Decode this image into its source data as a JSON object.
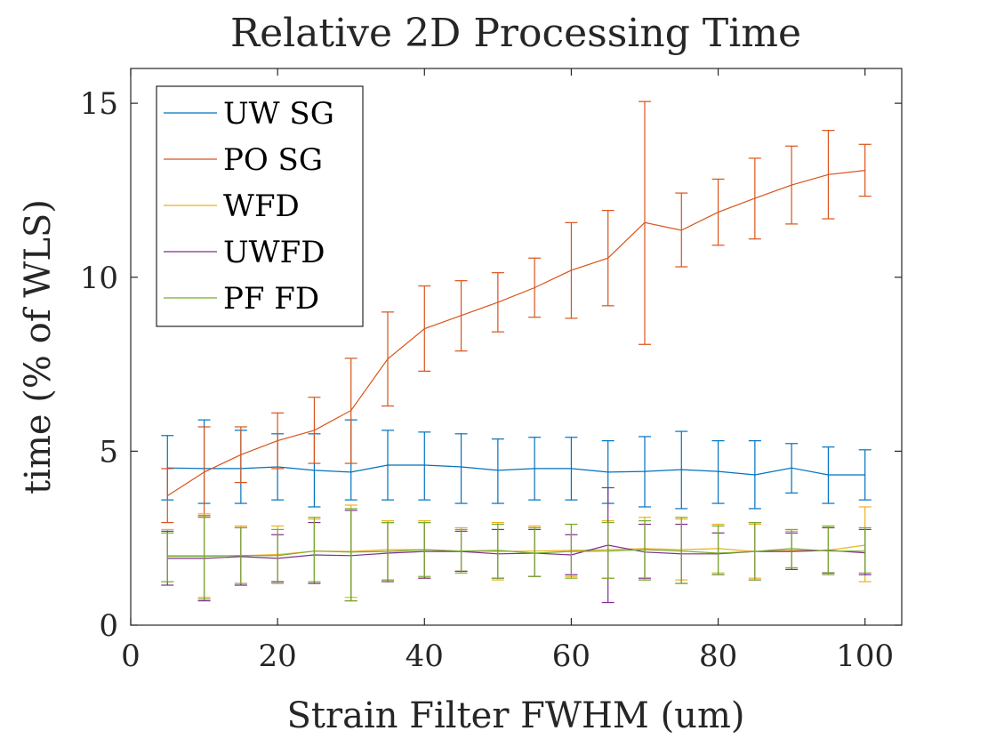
{
  "chart_data": {
    "type": "line",
    "title": "Relative 2D Processing Time",
    "xlabel": "Strain Filter FWHM (um)",
    "ylabel": "time (% of WLS)",
    "xlim": [
      0,
      105
    ],
    "ylim": [
      0,
      16
    ],
    "x_ticks": [
      0,
      20,
      40,
      60,
      80,
      100
    ],
    "y_ticks": [
      0,
      5,
      10,
      15
    ],
    "grid": false,
    "legend_position": "top-left",
    "x": [
      5,
      10,
      15,
      20,
      25,
      30,
      35,
      40,
      45,
      50,
      55,
      60,
      65,
      70,
      75,
      80,
      85,
      90,
      95,
      100
    ],
    "series": [
      {
        "name": "UW SG",
        "color": "#0072BD",
        "values": [
          4.52,
          4.5,
          4.5,
          4.55,
          4.45,
          4.4,
          4.6,
          4.6,
          4.55,
          4.45,
          4.5,
          4.5,
          4.4,
          4.42,
          4.47,
          4.42,
          4.32,
          4.52,
          4.32,
          4.32
        ],
        "err_low": [
          3.6,
          3.5,
          3.5,
          3.6,
          3.4,
          3.6,
          3.6,
          3.6,
          3.5,
          3.5,
          3.6,
          3.6,
          3.5,
          3.4,
          3.35,
          3.5,
          3.35,
          3.8,
          3.5,
          3.6
        ],
        "err_high": [
          5.45,
          5.9,
          5.6,
          5.5,
          5.5,
          5.9,
          5.6,
          5.55,
          5.5,
          5.35,
          5.4,
          5.4,
          5.3,
          5.42,
          5.57,
          5.3,
          5.3,
          5.22,
          5.12,
          5.04
        ]
      },
      {
        "name": "PO SG",
        "color": "#D95319",
        "values": [
          3.72,
          4.4,
          4.9,
          5.3,
          5.6,
          6.17,
          7.65,
          8.52,
          8.9,
          9.28,
          9.7,
          10.2,
          10.55,
          11.57,
          11.35,
          11.87,
          12.27,
          12.65,
          12.95,
          13.07
        ],
        "err_low": [
          2.95,
          3.1,
          4.1,
          4.5,
          4.65,
          4.65,
          6.3,
          7.3,
          7.88,
          8.43,
          8.85,
          8.82,
          9.18,
          8.07,
          10.3,
          10.92,
          11.1,
          11.53,
          11.68,
          12.33
        ],
        "err_high": [
          4.5,
          5.7,
          5.7,
          6.1,
          6.55,
          7.67,
          9.0,
          9.75,
          9.9,
          10.13,
          10.55,
          11.57,
          11.92,
          15.05,
          12.42,
          12.82,
          13.42,
          13.77,
          14.22,
          13.82
        ]
      },
      {
        "name": "WFD",
        "color": "#EDB120",
        "values": [
          2.0,
          2.0,
          2.0,
          2.03,
          2.13,
          2.12,
          2.17,
          2.17,
          2.13,
          2.12,
          2.13,
          2.15,
          2.17,
          2.2,
          2.17,
          2.2,
          2.12,
          2.15,
          2.15,
          2.3
        ],
        "err_low": [
          1.25,
          0.8,
          1.15,
          1.25,
          1.2,
          0.8,
          1.3,
          1.35,
          1.55,
          1.3,
          1.4,
          1.4,
          1.35,
          1.3,
          1.3,
          1.5,
          1.35,
          1.6,
          1.5,
          1.25
        ],
        "err_high": [
          2.75,
          3.2,
          2.85,
          2.85,
          3.05,
          3.45,
          3.0,
          3.0,
          2.8,
          2.95,
          2.85,
          2.9,
          3.0,
          3.1,
          3.05,
          2.9,
          2.9,
          2.7,
          2.8,
          3.4
        ]
      },
      {
        "name": "UWFD",
        "color": "#7E2F8E",
        "values": [
          1.92,
          1.92,
          1.97,
          1.92,
          2.02,
          2.0,
          2.07,
          2.12,
          2.12,
          2.05,
          2.07,
          2.02,
          2.3,
          2.1,
          2.05,
          2.05,
          2.12,
          2.12,
          2.15,
          2.08
        ],
        "err_low": [
          1.15,
          0.7,
          1.15,
          1.25,
          1.2,
          0.7,
          1.25,
          1.35,
          1.55,
          1.35,
          1.4,
          1.45,
          0.65,
          1.35,
          1.2,
          1.45,
          1.3,
          1.6,
          1.5,
          1.45
        ],
        "err_high": [
          2.7,
          3.15,
          2.8,
          2.6,
          2.95,
          3.3,
          2.95,
          2.95,
          2.7,
          2.75,
          2.75,
          2.6,
          3.95,
          2.9,
          2.9,
          2.65,
          2.95,
          2.65,
          2.8,
          2.75
        ]
      },
      {
        "name": "PF FD",
        "color": "#77AC30",
        "values": [
          1.98,
          1.98,
          2.0,
          2.0,
          2.13,
          2.1,
          2.12,
          2.17,
          2.13,
          2.15,
          2.07,
          2.12,
          2.13,
          2.17,
          2.13,
          2.07,
          2.12,
          2.2,
          2.13,
          2.13
        ],
        "err_low": [
          1.25,
          0.75,
          1.2,
          1.2,
          1.25,
          0.7,
          1.3,
          1.4,
          1.5,
          1.35,
          1.4,
          1.35,
          1.35,
          1.3,
          1.2,
          1.45,
          1.3,
          1.65,
          1.45,
          1.5
        ],
        "err_high": [
          2.65,
          3.15,
          2.8,
          2.75,
          3.1,
          3.35,
          2.95,
          2.95,
          2.75,
          2.9,
          2.8,
          2.9,
          2.95,
          3.0,
          3.1,
          2.85,
          2.95,
          2.75,
          2.85,
          2.8
        ]
      }
    ]
  }
}
